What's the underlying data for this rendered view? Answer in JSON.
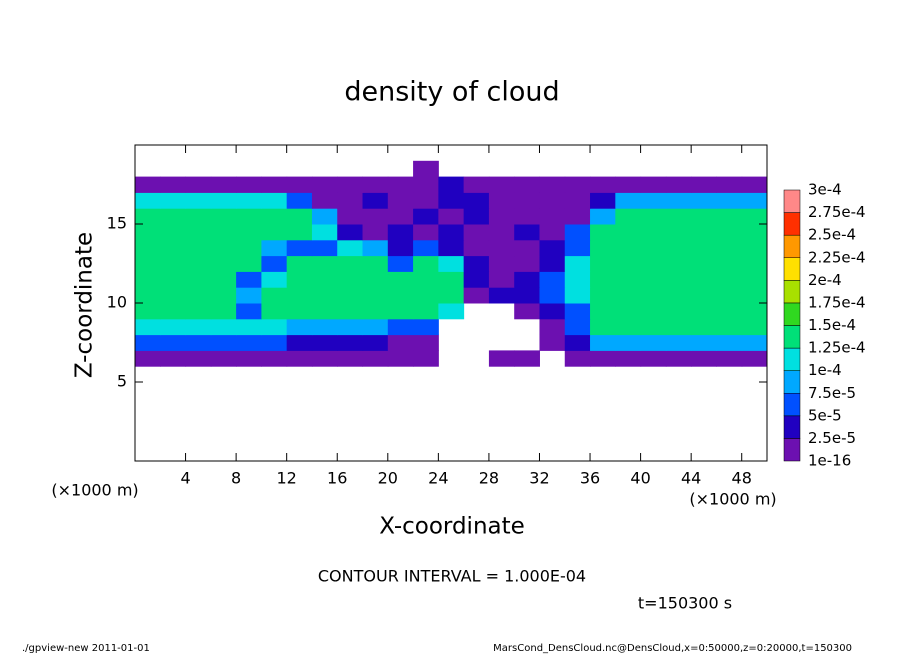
{
  "chart_data": {
    "type": "heatmap",
    "title": "density of cloud",
    "x_label": "X-coordinate",
    "y_label": "Z-coordinate",
    "x_unit_label": "(×1000 m)",
    "y_unit_label": "(×1000 m)",
    "contour_note": "CONTOUR INTERVAL = 1.000E-04",
    "time_label": "t=150300 s",
    "footer_left": "./gpview-new  2011-01-01",
    "footer_right": "MarsCond_DensCloud.nc@DensCloud,x=0:50000,z=0:20000,t=150300",
    "xlim": [
      0,
      50
    ],
    "ylim": [
      0,
      20
    ],
    "xticks": [
      4,
      8,
      12,
      16,
      20,
      24,
      28,
      32,
      36,
      40,
      44,
      48
    ],
    "yticks": [
      5,
      10,
      15
    ],
    "x": [
      1,
      3,
      5,
      7,
      9,
      11,
      13,
      15,
      17,
      19,
      21,
      23,
      25,
      27,
      29,
      31,
      33,
      35,
      37,
      39,
      41,
      43,
      45,
      47,
      49
    ],
    "y": [
      0.5,
      1.5,
      2.5,
      3.5,
      4.5,
      5.5,
      6.5,
      7.5,
      8.5,
      9.5,
      10.5,
      11.5,
      12.5,
      13.5,
      14.5,
      15.5,
      16.5,
      17.5,
      18.5,
      19.5
    ],
    "z": [
      [
        null,
        null,
        null,
        null,
        null,
        null,
        null,
        null,
        null,
        null,
        null,
        null,
        null,
        null,
        null,
        null,
        null,
        null,
        null,
        null,
        null,
        null,
        null,
        null,
        null
      ],
      [
        null,
        null,
        null,
        null,
        null,
        null,
        null,
        null,
        null,
        null,
        null,
        null,
        null,
        null,
        null,
        null,
        null,
        null,
        null,
        null,
        null,
        null,
        null,
        null,
        null
      ],
      [
        null,
        null,
        null,
        null,
        null,
        null,
        null,
        null,
        null,
        null,
        null,
        null,
        null,
        null,
        null,
        null,
        null,
        null,
        null,
        null,
        null,
        null,
        null,
        null,
        null
      ],
      [
        null,
        null,
        null,
        null,
        null,
        null,
        null,
        null,
        null,
        null,
        null,
        null,
        null,
        null,
        null,
        null,
        null,
        null,
        null,
        null,
        null,
        null,
        null,
        null,
        null
      ],
      [
        null,
        null,
        null,
        null,
        null,
        null,
        null,
        null,
        null,
        null,
        null,
        null,
        null,
        null,
        null,
        null,
        null,
        null,
        null,
        null,
        null,
        null,
        null,
        null,
        null
      ],
      [
        null,
        null,
        null,
        null,
        null,
        null,
        null,
        null,
        null,
        null,
        null,
        null,
        null,
        null,
        null,
        null,
        null,
        null,
        null,
        null,
        null,
        null,
        null,
        null,
        null
      ],
      [
        1e-05,
        1e-05,
        1e-05,
        1e-05,
        1e-05,
        1e-05,
        1e-05,
        1e-05,
        1e-05,
        1e-05,
        1e-05,
        1e-05,
        null,
        null,
        1e-05,
        1e-05,
        null,
        1e-05,
        1e-05,
        1e-05,
        1e-05,
        1e-05,
        1e-05,
        1e-05,
        1e-05
      ],
      [
        6e-05,
        6e-05,
        6e-05,
        6e-05,
        6e-05,
        6e-05,
        3.5e-05,
        3.5e-05,
        3.5e-05,
        3.5e-05,
        1e-05,
        1e-05,
        null,
        null,
        null,
        null,
        1e-05,
        3.5e-05,
        8.5e-05,
        8.5e-05,
        8.5e-05,
        8.5e-05,
        8.5e-05,
        8.5e-05,
        8.5e-05
      ],
      [
        0.00011,
        0.00011,
        0.00011,
        0.00011,
        0.00011,
        0.00011,
        8.5e-05,
        8.5e-05,
        8.5e-05,
        8.5e-05,
        6e-05,
        6e-05,
        null,
        null,
        null,
        null,
        1e-05,
        6e-05,
        0.00014,
        0.00014,
        0.00014,
        0.00014,
        0.00014,
        0.00014,
        0.00014
      ],
      [
        0.00014,
        0.00014,
        0.00014,
        0.00014,
        6e-05,
        0.00014,
        0.00014,
        0.00014,
        0.00014,
        0.00014,
        0.00014,
        0.00014,
        0.00011,
        null,
        null,
        1e-05,
        3.5e-05,
        6e-05,
        0.00014,
        0.00014,
        0.00014,
        0.00014,
        0.00014,
        0.00014,
        0.00014
      ],
      [
        0.00014,
        0.00014,
        0.00014,
        0.00014,
        8.5e-05,
        0.00014,
        0.00014,
        0.00014,
        0.00014,
        0.00014,
        0.00014,
        0.00014,
        0.00014,
        1e-05,
        3.5e-05,
        3.5e-05,
        6e-05,
        0.00011,
        0.00014,
        0.00014,
        0.00014,
        0.00014,
        0.00014,
        0.00014,
        0.00014
      ],
      [
        0.00014,
        0.00014,
        0.00014,
        0.00014,
        6e-05,
        0.00011,
        0.00014,
        0.00014,
        0.00014,
        0.00014,
        0.00014,
        0.00014,
        0.00014,
        3.5e-05,
        1e-05,
        3.5e-05,
        6e-05,
        0.00011,
        0.00014,
        0.00014,
        0.00014,
        0.00014,
        0.00014,
        0.00014,
        0.00014
      ],
      [
        0.00014,
        0.00014,
        0.00014,
        0.00014,
        0.00014,
        6e-05,
        0.00014,
        0.00014,
        0.00014,
        0.00014,
        6e-05,
        0.00014,
        0.00011,
        3.5e-05,
        1e-05,
        1e-05,
        3.5e-05,
        0.00011,
        0.00014,
        0.00014,
        0.00014,
        0.00014,
        0.00014,
        0.00014,
        0.00014
      ],
      [
        0.00014,
        0.00014,
        0.00014,
        0.00014,
        0.00014,
        8.5e-05,
        6e-05,
        6e-05,
        0.00011,
        8.5e-05,
        3.5e-05,
        6e-05,
        3.5e-05,
        1e-05,
        1e-05,
        1e-05,
        3.5e-05,
        6e-05,
        0.00014,
        0.00014,
        0.00014,
        0.00014,
        0.00014,
        0.00014,
        0.00014
      ],
      [
        0.00014,
        0.00014,
        0.00014,
        0.00014,
        0.00014,
        0.00014,
        0.00014,
        0.00011,
        3.5e-05,
        1e-05,
        3.5e-05,
        1e-05,
        3.5e-05,
        1e-05,
        1e-05,
        3.5e-05,
        1e-05,
        6e-05,
        0.00014,
        0.00014,
        0.00014,
        0.00014,
        0.00014,
        0.00014,
        0.00014
      ],
      [
        0.00014,
        0.00014,
        0.00014,
        0.00014,
        0.00014,
        0.00014,
        0.00014,
        8.5e-05,
        1e-05,
        1e-05,
        1e-05,
        3.5e-05,
        1e-05,
        3.5e-05,
        1e-05,
        1e-05,
        1e-05,
        1e-05,
        8.5e-05,
        0.00014,
        0.00014,
        0.00014,
        0.00014,
        0.00014,
        0.00014
      ],
      [
        0.00011,
        0.00011,
        0.00011,
        0.00011,
        0.00011,
        0.00011,
        6e-05,
        1e-05,
        1e-05,
        3.5e-05,
        1e-05,
        1e-05,
        3.5e-05,
        3.5e-05,
        1e-05,
        1e-05,
        1e-05,
        1e-05,
        3.5e-05,
        8.5e-05,
        8.5e-05,
        8.5e-05,
        8.5e-05,
        8.5e-05,
        8.5e-05
      ],
      [
        1e-05,
        1e-05,
        1e-05,
        1e-05,
        1e-05,
        1e-05,
        1e-05,
        1e-05,
        1e-05,
        1e-05,
        1e-05,
        1e-05,
        3.5e-05,
        1e-05,
        1e-05,
        1e-05,
        1e-05,
        1e-05,
        1e-05,
        1e-05,
        1e-05,
        1e-05,
        1e-05,
        1e-05,
        1e-05
      ],
      [
        null,
        null,
        null,
        null,
        null,
        null,
        null,
        null,
        null,
        null,
        null,
        1e-05,
        null,
        null,
        null,
        null,
        null,
        null,
        null,
        null,
        null,
        null,
        null,
        null,
        null
      ],
      [
        null,
        null,
        null,
        null,
        null,
        null,
        null,
        null,
        null,
        null,
        null,
        null,
        null,
        null,
        null,
        null,
        null,
        null,
        null,
        null,
        null,
        null,
        null,
        null,
        null
      ]
    ],
    "levels": [
      {
        "value": 1e-16,
        "label": "1e-16"
      },
      {
        "value": 2.5e-05,
        "label": "2.5e-5"
      },
      {
        "value": 5e-05,
        "label": "5e-5"
      },
      {
        "value": 7.5e-05,
        "label": "7.5e-5"
      },
      {
        "value": 0.0001,
        "label": "1e-4"
      },
      {
        "value": 0.000125,
        "label": "1.25e-4"
      },
      {
        "value": 0.00015,
        "label": "1.5e-4"
      },
      {
        "value": 0.000175,
        "label": "1.75e-4"
      },
      {
        "value": 0.0002,
        "label": "2e-4"
      },
      {
        "value": 0.000225,
        "label": "2.25e-4"
      },
      {
        "value": 0.00025,
        "label": "2.5e-4"
      },
      {
        "value": 0.000275,
        "label": "2.75e-4"
      },
      {
        "value": 0.0003,
        "label": "3e-4"
      }
    ],
    "colors": [
      "#6c10b0",
      "#2000c0",
      "#0050ff",
      "#00a8ff",
      "#00e0e0",
      "#00e078",
      "#30d820",
      "#a8e000",
      "#ffe000",
      "#ff9800",
      "#ff3000",
      "#ff8888"
    ]
  }
}
